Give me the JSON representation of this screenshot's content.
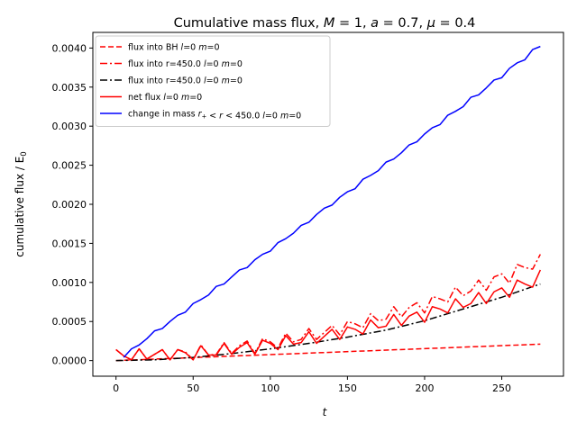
{
  "chart_data": {
    "type": "line",
    "title": "Cumulative mass flux, M = 1, a = 0.7, μ = 0.4",
    "title_parts": [
      {
        "t": "Cumulative mass flux, ",
        "i": false
      },
      {
        "t": "M",
        "i": true
      },
      {
        "t": " = 1, ",
        "i": false
      },
      {
        "t": "a",
        "i": true
      },
      {
        "t": " = 0.7, ",
        "i": false
      },
      {
        "t": "μ",
        "i": true
      },
      {
        "t": " = 0.4",
        "i": false
      }
    ],
    "xlabel": "t",
    "ylabel": "cumulative flux / E",
    "ylabel_sub": "0",
    "xlim": [
      -15,
      290
    ],
    "ylim": [
      -0.0002,
      0.0042
    ],
    "xticks": [
      0,
      50,
      100,
      150,
      200,
      250
    ],
    "yticks": [
      0.0,
      0.0005,
      0.001,
      0.0015,
      0.002,
      0.0025,
      0.003,
      0.0035,
      0.004
    ],
    "ytick_labels": [
      "0.0000",
      "0.0005",
      "0.0010",
      "0.0015",
      "0.0020",
      "0.0025",
      "0.0030",
      "0.0035",
      "0.0040"
    ],
    "grid": false,
    "legend_placement": "upper-left",
    "colors": {
      "red": "#ff0000",
      "black": "#000000",
      "blue": "#0000ff"
    },
    "series": [
      {
        "name": "flux into BH l=0 m=0",
        "legend_parts": [
          {
            "t": "flux into BH ",
            "i": false
          },
          {
            "t": "l",
            "i": true
          },
          {
            "t": "=0 ",
            "i": false
          },
          {
            "t": "m",
            "i": true
          },
          {
            "t": "=0",
            "i": false
          }
        ],
        "color": "#ff0000",
        "dash": "dashed",
        "x": [
          0,
          275
        ],
        "y": [
          0.0,
          0.00021
        ]
      },
      {
        "name": "flux into r=450.0 l=0 m=0",
        "legend_parts": [
          {
            "t": "flux into r=450.0 ",
            "i": false
          },
          {
            "t": "l",
            "i": true
          },
          {
            "t": "=0 ",
            "i": false
          },
          {
            "t": "m",
            "i": true
          },
          {
            "t": "=0",
            "i": false
          }
        ],
        "color": "#ff0000",
        "dash": "dashdot",
        "x": [
          0,
          5,
          10,
          15,
          20,
          25,
          30,
          35,
          40,
          45,
          50,
          55,
          60,
          65,
          70,
          75,
          80,
          85,
          90,
          95,
          100,
          105,
          110,
          115,
          120,
          125,
          130,
          135,
          140,
          145,
          150,
          155,
          160,
          165,
          170,
          175,
          180,
          185,
          190,
          195,
          200,
          205,
          210,
          215,
          220,
          225,
          230,
          235,
          240,
          245,
          250,
          255,
          260,
          265,
          270,
          275
        ],
        "y": [
          0.00014,
          6e-05,
          1e-05,
          0.00015,
          2e-05,
          8e-05,
          0.00014,
          1e-05,
          0.00014,
          0.00011,
          1e-05,
          0.0002,
          7e-05,
          8e-05,
          0.00023,
          9e-05,
          0.00019,
          0.00025,
          9e-05,
          0.00028,
          0.00024,
          0.00016,
          0.00035,
          0.00024,
          0.00027,
          0.00041,
          0.00027,
          0.00036,
          0.00045,
          0.00033,
          0.0005,
          0.00047,
          0.00042,
          0.0006,
          0.00051,
          0.00053,
          0.00069,
          0.00056,
          0.00068,
          0.00074,
          0.00061,
          0.00082,
          0.00079,
          0.00075,
          0.00094,
          0.00083,
          0.00089,
          0.00103,
          0.0009,
          0.00107,
          0.00111,
          0.00099,
          0.00123,
          0.00119,
          0.00117,
          0.00136
        ]
      },
      {
        "name": "flux into r=450.0 l=0 m=0",
        "legend_parts": [
          {
            "t": "flux into r=450.0 ",
            "i": false
          },
          {
            "t": "l",
            "i": true
          },
          {
            "t": "=0 ",
            "i": false
          },
          {
            "t": "m",
            "i": true
          },
          {
            "t": "=0",
            "i": false
          }
        ],
        "color": "#000000",
        "dash": "dashdot",
        "x": [
          0,
          25,
          50,
          75,
          100,
          125,
          150,
          175,
          200,
          225,
          250,
          275
        ],
        "y": [
          0.0,
          1e-05,
          4e-05,
          9e-05,
          0.00015,
          0.00022,
          0.0003,
          0.00039,
          0.00051,
          0.00066,
          0.00081,
          0.00098
        ]
      },
      {
        "name": "net flux l=0 m=0",
        "legend_parts": [
          {
            "t": "net flux ",
            "i": false
          },
          {
            "t": "l",
            "i": true
          },
          {
            "t": "=0 ",
            "i": false
          },
          {
            "t": "m",
            "i": true
          },
          {
            "t": "=0",
            "i": false
          }
        ],
        "color": "#ff0000",
        "dash": "solid",
        "x": [
          0,
          5,
          10,
          15,
          20,
          25,
          30,
          35,
          40,
          45,
          50,
          55,
          60,
          65,
          70,
          75,
          80,
          85,
          90,
          95,
          100,
          105,
          110,
          115,
          120,
          125,
          130,
          135,
          140,
          145,
          150,
          155,
          160,
          165,
          170,
          175,
          180,
          185,
          190,
          195,
          200,
          205,
          210,
          215,
          220,
          225,
          230,
          235,
          240,
          245,
          250,
          255,
          260,
          265,
          270,
          275
        ],
        "y": [
          0.00014,
          6e-05,
          1e-05,
          0.00015,
          2e-05,
          8e-05,
          0.00014,
          1e-05,
          0.00014,
          0.0001,
          1e-05,
          0.00019,
          7e-05,
          7e-05,
          0.00022,
          8e-05,
          0.00017,
          0.00023,
          8e-05,
          0.00026,
          0.00022,
          0.00014,
          0.00032,
          0.00021,
          0.00023,
          0.00037,
          0.00022,
          0.00031,
          0.0004,
          0.00027,
          0.00043,
          0.0004,
          0.00034,
          0.00052,
          0.00042,
          0.00044,
          0.00059,
          0.00045,
          0.00057,
          0.00062,
          0.00049,
          0.00069,
          0.00066,
          0.00061,
          0.00079,
          0.00068,
          0.00073,
          0.00087,
          0.00073,
          0.00088,
          0.00093,
          0.00081,
          0.00103,
          0.00098,
          0.00094,
          0.00116
        ]
      },
      {
        "name": "change in mass r+ < r < 450.0 l=0 m=0",
        "legend_parts": [
          {
            "t": "change in mass ",
            "i": false
          },
          {
            "t": "r",
            "i": true
          },
          {
            "t": "+",
            "i": false,
            "sub": true
          },
          {
            "t": " < ",
            "i": false
          },
          {
            "t": "r",
            "i": true
          },
          {
            "t": " < 450.0 ",
            "i": false
          },
          {
            "t": "l",
            "i": true
          },
          {
            "t": "=0 ",
            "i": false
          },
          {
            "t": "m",
            "i": true
          },
          {
            "t": "=0",
            "i": false
          }
        ],
        "color": "#0000ff",
        "dash": "solid",
        "x": [
          5,
          10,
          15,
          20,
          25,
          30,
          35,
          40,
          45,
          50,
          55,
          60,
          65,
          70,
          75,
          80,
          85,
          90,
          95,
          100,
          105,
          110,
          115,
          120,
          125,
          130,
          135,
          140,
          145,
          150,
          155,
          160,
          165,
          170,
          175,
          180,
          185,
          190,
          195,
          200,
          205,
          210,
          215,
          220,
          225,
          230,
          235,
          240,
          245,
          250,
          255,
          260,
          265,
          270,
          275
        ],
        "y": [
          4e-05,
          0.00015,
          0.0002,
          0.00028,
          0.00038,
          0.00041,
          0.0005,
          0.00058,
          0.00062,
          0.00073,
          0.00078,
          0.00084,
          0.00095,
          0.00098,
          0.00107,
          0.00116,
          0.00119,
          0.00129,
          0.00136,
          0.0014,
          0.00151,
          0.00156,
          0.00163,
          0.00173,
          0.00177,
          0.00187,
          0.00195,
          0.00199,
          0.00209,
          0.00216,
          0.0022,
          0.00232,
          0.00237,
          0.00243,
          0.00254,
          0.00258,
          0.00266,
          0.00276,
          0.0028,
          0.0029,
          0.00298,
          0.00302,
          0.00314,
          0.00319,
          0.00325,
          0.00337,
          0.0034,
          0.00349,
          0.00359,
          0.00362,
          0.00374,
          0.00381,
          0.00385,
          0.00398,
          0.00402
        ]
      }
    ]
  }
}
